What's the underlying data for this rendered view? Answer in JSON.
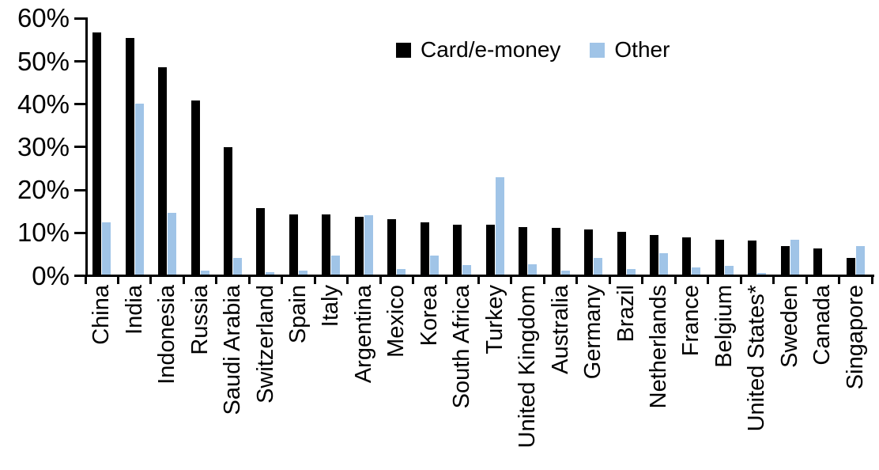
{
  "chart_data": {
    "type": "bar",
    "title": "",
    "xlabel": "",
    "ylabel": "",
    "categories": [
      "China",
      "India",
      "Indonesia",
      "Russia",
      "Saudi Arabia",
      "Switzerland",
      "Spain",
      "Italy",
      "Argentina",
      "Mexico",
      "Korea",
      "South Africa",
      "Turkey",
      "United Kingdom",
      "Australia",
      "Germany",
      "Brazil",
      "Netherlands",
      "France",
      "Belgium",
      "United States*",
      "Sweden",
      "Canada",
      "Singapore"
    ],
    "series": [
      {
        "name": "Card/e-money",
        "color": "#000000",
        "values": [
          56.4,
          55.2,
          48.3,
          40.6,
          29.8,
          15.5,
          14.1,
          14.0,
          13.4,
          12.9,
          12.2,
          11.7,
          11.6,
          11.0,
          10.8,
          10.6,
          10.0,
          9.3,
          8.7,
          8.2,
          8.0,
          6.6,
          6.0,
          3.9
        ]
      },
      {
        "name": "Other",
        "color": "#A0C4E7",
        "values": [
          12.2,
          39.8,
          14.4,
          1.0,
          3.8,
          0.6,
          1.0,
          4.5,
          13.8,
          1.2,
          4.5,
          2.3,
          22.7,
          2.4,
          1.0,
          3.9,
          1.2,
          4.9,
          1.6,
          2.0,
          0.3,
          8.2,
          0.0,
          6.7
        ]
      }
    ],
    "ylim": [
      0,
      60
    ],
    "y_tick_labels": [
      "0%",
      "10%",
      "20%",
      "30%",
      "40%",
      "50%",
      "60%"
    ],
    "grid": "off",
    "legend_position": "top-center",
    "bar_unit": "percent"
  }
}
